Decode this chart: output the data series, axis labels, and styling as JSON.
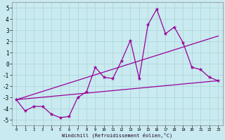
{
  "background_color": "#c8eaf0",
  "grid_color": "#b0d8d8",
  "line_color": "#990099",
  "xlabel": "Windchill (Refroidissement éolien,°C)",
  "xlim": [
    -0.5,
    23.5
  ],
  "ylim": [
    -5.5,
    5.5
  ],
  "yticks": [
    -5,
    -4,
    -3,
    -2,
    -1,
    0,
    1,
    2,
    3,
    4,
    5
  ],
  "xticks": [
    0,
    1,
    2,
    3,
    4,
    5,
    6,
    7,
    8,
    9,
    10,
    11,
    12,
    13,
    14,
    15,
    16,
    17,
    18,
    19,
    20,
    21,
    22,
    23
  ],
  "series1_x": [
    0,
    1,
    2,
    3,
    4,
    5,
    6,
    7,
    8,
    9,
    10,
    11,
    12,
    13,
    14,
    15,
    16,
    17,
    18,
    19,
    20,
    21,
    22,
    23
  ],
  "series1_y": [
    -3.2,
    -4.2,
    -3.8,
    -3.8,
    -4.5,
    -4.8,
    -4.7,
    -3.0,
    -2.5,
    -0.3,
    -1.2,
    -1.3,
    0.3,
    2.1,
    -1.3,
    3.5,
    4.9,
    2.7,
    3.3,
    1.9,
    -0.3,
    -0.5,
    -1.2,
    -1.5
  ],
  "series2_x": [
    0,
    23
  ],
  "series2_y": [
    -3.2,
    -1.5
  ],
  "series3_x": [
    0,
    23
  ],
  "series3_y": [
    -3.2,
    2.5
  ],
  "figwidth": 3.2,
  "figheight": 2.0,
  "dpi": 100
}
